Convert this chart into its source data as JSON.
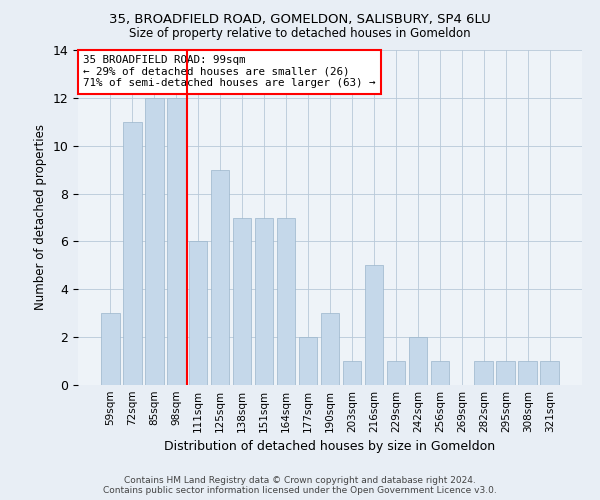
{
  "title1": "35, BROADFIELD ROAD, GOMELDON, SALISBURY, SP4 6LU",
  "title2": "Size of property relative to detached houses in Gomeldon",
  "xlabel": "Distribution of detached houses by size in Gomeldon",
  "ylabel": "Number of detached properties",
  "categories": [
    "59sqm",
    "72sqm",
    "85sqm",
    "98sqm",
    "111sqm",
    "125sqm",
    "138sqm",
    "151sqm",
    "164sqm",
    "177sqm",
    "190sqm",
    "203sqm",
    "216sqm",
    "229sqm",
    "242sqm",
    "256sqm",
    "269sqm",
    "282sqm",
    "295sqm",
    "308sqm",
    "321sqm"
  ],
  "values": [
    3,
    11,
    12,
    12,
    6,
    9,
    7,
    7,
    7,
    2,
    3,
    1,
    5,
    1,
    2,
    1,
    0,
    1,
    1,
    1,
    1
  ],
  "bar_color": "#c5d8ea",
  "bar_edge_color": "#9ab5cc",
  "red_line_x": 3.5,
  "annotation_line1": "35 BROADFIELD ROAD: 99sqm",
  "annotation_line2": "← 29% of detached houses are smaller (26)",
  "annotation_line3": "71% of semi-detached houses are larger (63) →",
  "footer1": "Contains HM Land Registry data © Crown copyright and database right 2024.",
  "footer2": "Contains public sector information licensed under the Open Government Licence v3.0.",
  "ylim": [
    0,
    14
  ],
  "yticks": [
    0,
    2,
    4,
    6,
    8,
    10,
    12,
    14
  ],
  "bg_color": "#e8eef5",
  "plot_bg_color": "#eef3f8"
}
